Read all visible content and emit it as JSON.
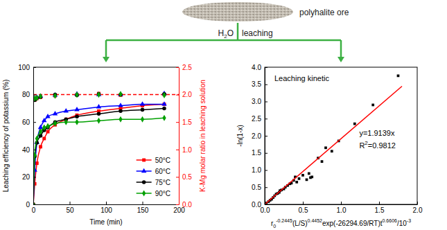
{
  "diagram": {
    "ore_label": "polyhalite ore",
    "solvent": [
      {
        "text": "H",
        "sub": "2"
      },
      {
        "text": "O"
      }
    ],
    "process": "leaching"
  },
  "chart_data": [
    {
      "type": "line",
      "x_label": "Time (min)",
      "y_label": "Leaching efficiency of potassium (%)",
      "y2_label": "K-Mg molar ratio in leaching solution",
      "xlim": [
        0,
        200
      ],
      "xticks": [
        0,
        50,
        100,
        150,
        200
      ],
      "ylim": [
        0,
        100
      ],
      "yticks": [
        0,
        20,
        40,
        60,
        80,
        100
      ],
      "y2lim": [
        0,
        2.5
      ],
      "y2ticks": [
        {
          "value": 0,
          "label": "0.0"
        },
        0.5,
        {
          "value": 1,
          "label": "1.0"
        },
        1.5,
        {
          "value": 2,
          "label": "2.0"
        },
        2.5
      ],
      "grid": false,
      "legend": "lower right",
      "x": [
        0,
        2,
        5,
        10,
        15,
        20,
        30,
        45,
        60,
        90,
        120,
        150,
        180
      ],
      "series": [
        {
          "name": "50°C",
          "color": "#ff0000",
          "marker": "square",
          "line_style": "solid",
          "values": [
            0,
            15,
            30,
            42,
            48,
            53,
            58,
            62,
            65,
            68,
            70,
            72,
            73
          ]
        },
        {
          "name": "60°C",
          "color": "#0000ff",
          "marker": "triangle",
          "line_style": "solid",
          "values": [
            0,
            25,
            45,
            56,
            61,
            64,
            66,
            68,
            69,
            71,
            72,
            73,
            73
          ]
        },
        {
          "name": "75°C",
          "color": "#000000",
          "marker": "circle",
          "line_style": "solid",
          "values": [
            0,
            35,
            45,
            50,
            54,
            56,
            60,
            62,
            64,
            66,
            68,
            69,
            70
          ]
        },
        {
          "name": "90°C",
          "color": "#00a000",
          "marker": "diamond",
          "line_style": "solid",
          "values": [
            0,
            36,
            48,
            53,
            56,
            57,
            59,
            60,
            60,
            61,
            62,
            62,
            63
          ]
        },
        {
          "type": "scatter",
          "axis": "y2",
          "color": "#ff0000",
          "marker": "square",
          "x": [
            2,
            5,
            10,
            30,
            60,
            90,
            120,
            180
          ],
          "values": [
            1.9,
            1.93,
            1.95,
            1.98,
            2.0,
            2.02,
            1.99,
            2.0
          ]
        },
        {
          "type": "scatter",
          "axis": "y2",
          "color": "#0000ff",
          "marker": "triangle",
          "x": [
            2,
            5,
            10,
            30,
            60,
            90,
            120,
            180
          ],
          "values": [
            1.92,
            1.95,
            1.97,
            1.99,
            2.01,
            2.0,
            2.0,
            2.02
          ]
        },
        {
          "type": "scatter",
          "axis": "y2",
          "color": "#000000",
          "marker": "circle",
          "x": [
            2,
            5,
            10,
            30,
            60,
            90,
            120,
            180
          ],
          "values": [
            1.9,
            1.94,
            1.96,
            2.0,
            1.99,
            2.01,
            2.0,
            2.01
          ]
        },
        {
          "type": "scatter",
          "axis": "y2",
          "color": "#00a000",
          "marker": "diamond",
          "x": [
            2,
            5,
            10,
            30,
            60,
            90,
            120,
            180
          ],
          "values": [
            1.93,
            1.94,
            1.97,
            1.98,
            2.0,
            2.0,
            2.01,
            1.99
          ]
        }
      ],
      "reference_line": {
        "value": 2,
        "axis": "y2",
        "color": "#ff0000",
        "line_style": "dashed"
      }
    },
    {
      "type": "scatter",
      "title": "Leaching kinetic",
      "x_label": [
        {
          "text": "r",
          "sub": "0",
          "sup": "-0.2445"
        },
        {
          "text": "(L/S)",
          "sup": "0.4452"
        },
        {
          "text": "exp(-26294.69/RT)t",
          "sup": "0.6606"
        },
        {
          "text": "/10",
          "sup": "-3"
        }
      ],
      "y_label": "-ln(1-x)",
      "xlim": [
        0,
        2
      ],
      "xticks": [
        {
          "value": 0,
          "label": "0.0"
        },
        0.5,
        {
          "value": 1,
          "label": "1.0"
        },
        1.5,
        {
          "value": 2,
          "label": "2.0"
        }
      ],
      "ylim": [
        0,
        4
      ],
      "yticks": [
        {
          "value": 0,
          "label": "0.0"
        },
        0.5,
        {
          "value": 1,
          "label": "1.0"
        },
        1.5,
        {
          "value": 2,
          "label": "2.0"
        },
        2.5,
        {
          "value": 3,
          "label": "3.0"
        },
        3.5,
        {
          "value": 4,
          "label": "4.0"
        }
      ],
      "grid": false,
      "series": [
        {
          "type": "scatter",
          "color": "#000000",
          "marker": "square",
          "x": [
            0.02,
            0.05,
            0.07,
            0.09,
            0.11,
            0.13,
            0.15,
            0.17,
            0.19,
            0.2,
            0.22,
            0.25,
            0.27,
            0.3,
            0.33,
            0.35,
            0.38,
            0.4,
            0.42,
            0.45,
            0.5,
            0.55,
            0.58,
            0.6,
            0.62,
            0.7,
            0.75,
            0.8,
            0.88,
            0.97,
            1.18,
            1.42,
            1.75
          ],
          "values": [
            0.04,
            0.08,
            0.12,
            0.15,
            0.2,
            0.25,
            0.3,
            0.32,
            0.35,
            0.4,
            0.42,
            0.45,
            0.5,
            0.55,
            0.6,
            0.62,
            0.7,
            0.8,
            0.65,
            0.75,
            0.85,
            0.72,
            0.9,
            0.78,
            0.8,
            1.35,
            1.25,
            1.65,
            1.55,
            1.85,
            2.35,
            2.9,
            3.75
          ]
        },
        {
          "type": "line",
          "color": "#ff0000",
          "line_style": "solid",
          "x": [
            0,
            1.8
          ],
          "values": [
            0,
            3.445
          ]
        }
      ],
      "annotations": [
        [
          {
            "text": "y=1.9139x"
          }
        ],
        [
          {
            "text": "R",
            "sup": "2"
          },
          {
            "text": "=0.9812"
          }
        ]
      ]
    }
  ]
}
